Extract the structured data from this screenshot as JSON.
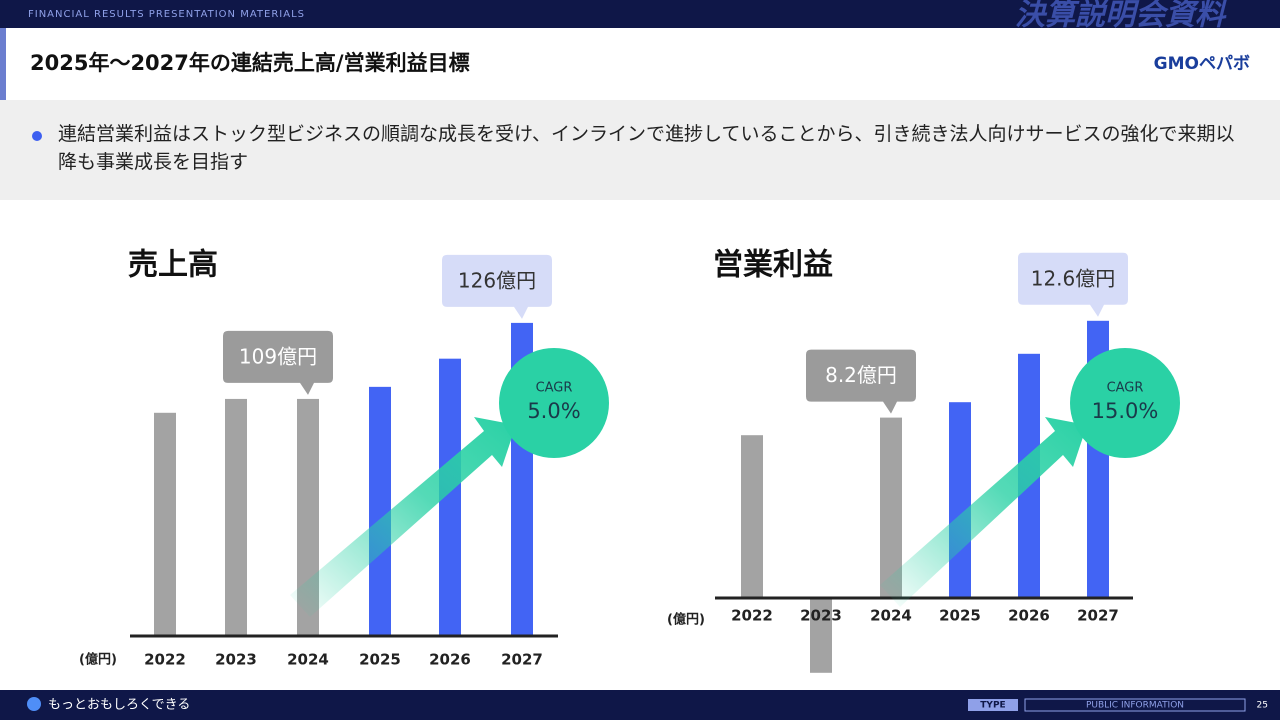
{
  "header": {
    "tagline": "FINANCIAL RESULTS PRESENTATION MATERIALS",
    "badge": "決算説明会資料",
    "title": "2025年～2027年の連結売上高/営業利益目標",
    "logo": "GMOペパボ"
  },
  "bullet": "連結営業利益はストック型ビジネスの順調な成長を受け、インラインで進捗していることから、引き続き法人向けサービスの強化で来期以降も事業成長を目指す",
  "chart_data": [
    {
      "type": "bar",
      "title": "売上高",
      "y_unit": "(億円)",
      "categories": [
        "2022",
        "2023",
        "2024",
        "2025",
        "2026",
        "2027"
      ],
      "values": [
        105.9,
        109,
        109,
        111.7,
        118,
        126
      ],
      "value_labels": [
        null,
        null,
        "109億円",
        null,
        null,
        "126億円"
      ],
      "colors": [
        "#a3a3a3",
        "#a3a3a3",
        "#a3a3a3",
        "#4264f4",
        "#4264f4",
        "#4264f4"
      ],
      "ylim": [
        56,
        130
      ],
      "annotations": {
        "label": "CAGR",
        "value": "5.0%"
      }
    },
    {
      "type": "bar",
      "title": "営業利益",
      "y_unit": "(億円)",
      "categories": [
        "2022",
        "2023",
        "2024",
        "2025",
        "2026",
        "2027"
      ],
      "values": [
        7.4,
        -3.4,
        8.2,
        8.9,
        11.1,
        12.6
      ],
      "value_labels": [
        null,
        null,
        "8.2億円",
        null,
        null,
        "12.6億円"
      ],
      "colors": [
        "#a3a3a3",
        "#a3a3a3",
        "#a3a3a3",
        "#4264f4",
        "#4264f4",
        "#4264f4"
      ],
      "ylim": [
        -4,
        14
      ],
      "annotations": {
        "label": "CAGR",
        "value": "15.0%"
      }
    }
  ],
  "footer": {
    "slogan": "もっとおもしろくできる",
    "type": "TYPE",
    "info": "PUBLIC INFORMATION",
    "page": "25"
  }
}
